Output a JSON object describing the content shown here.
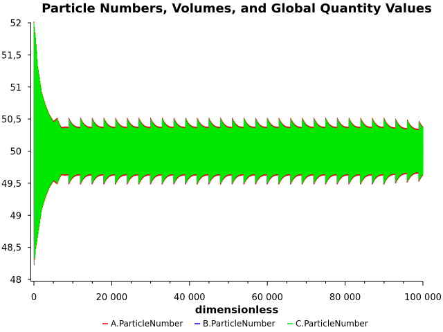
{
  "chart_data": {
    "type": "line",
    "title": "Particle Numbers, Volumes, and Global Quantity Values",
    "xlabel": "dimensionless",
    "ylabel": "",
    "xlim": [
      0,
      100000
    ],
    "ylim": [
      48,
      52
    ],
    "x_ticks": [
      {
        "value": 0,
        "label": "0"
      },
      {
        "value": 20000,
        "label": "20 000"
      },
      {
        "value": 40000,
        "label": "40 000"
      },
      {
        "value": 60000,
        "label": "60 000"
      },
      {
        "value": 80000,
        "label": "80 000"
      },
      {
        "value": 100000,
        "label": "100 000"
      }
    ],
    "y_ticks": [
      {
        "value": 48,
        "label": "48"
      },
      {
        "value": 48.5,
        "label": "48,5"
      },
      {
        "value": 49,
        "label": "49"
      },
      {
        "value": 49.5,
        "label": "49,5"
      },
      {
        "value": 50,
        "label": "50"
      },
      {
        "value": 50.5,
        "label": "50,5"
      },
      {
        "value": 51,
        "label": "51"
      },
      {
        "value": 51.5,
        "label": "51,5"
      },
      {
        "value": 52,
        "label": "52"
      }
    ],
    "grid": false,
    "legend_position": "bottom",
    "series": [
      {
        "name": "A.ParticleNumber",
        "color": "#e8001c"
      },
      {
        "name": "B.ParticleNumber",
        "color": "#1c00e8"
      },
      {
        "name": "C.ParticleNumber",
        "color": "#00e800"
      }
    ],
    "envelope": {
      "x": [
        0,
        500,
        1000,
        2000,
        3000,
        4000,
        5000,
        6000,
        7000,
        8000,
        10000,
        20000,
        30000,
        40000,
        50000,
        60000,
        70000,
        80000,
        90000,
        100000
      ],
      "y_max": [
        52,
        51.7,
        51.3,
        50.9,
        50.7,
        50.55,
        50.45,
        50.5,
        50.45,
        50.5,
        50.5,
        50.5,
        50.5,
        50.5,
        50.5,
        50.5,
        50.5,
        50.5,
        50.5,
        50.45
      ],
      "y_min": [
        48.2,
        48.5,
        48.7,
        49.1,
        49.3,
        49.45,
        49.55,
        49.5,
        49.55,
        49.5,
        49.5,
        49.5,
        49.5,
        49.5,
        49.5,
        49.5,
        49.5,
        49.5,
        49.5,
        49.55
      ]
    }
  }
}
